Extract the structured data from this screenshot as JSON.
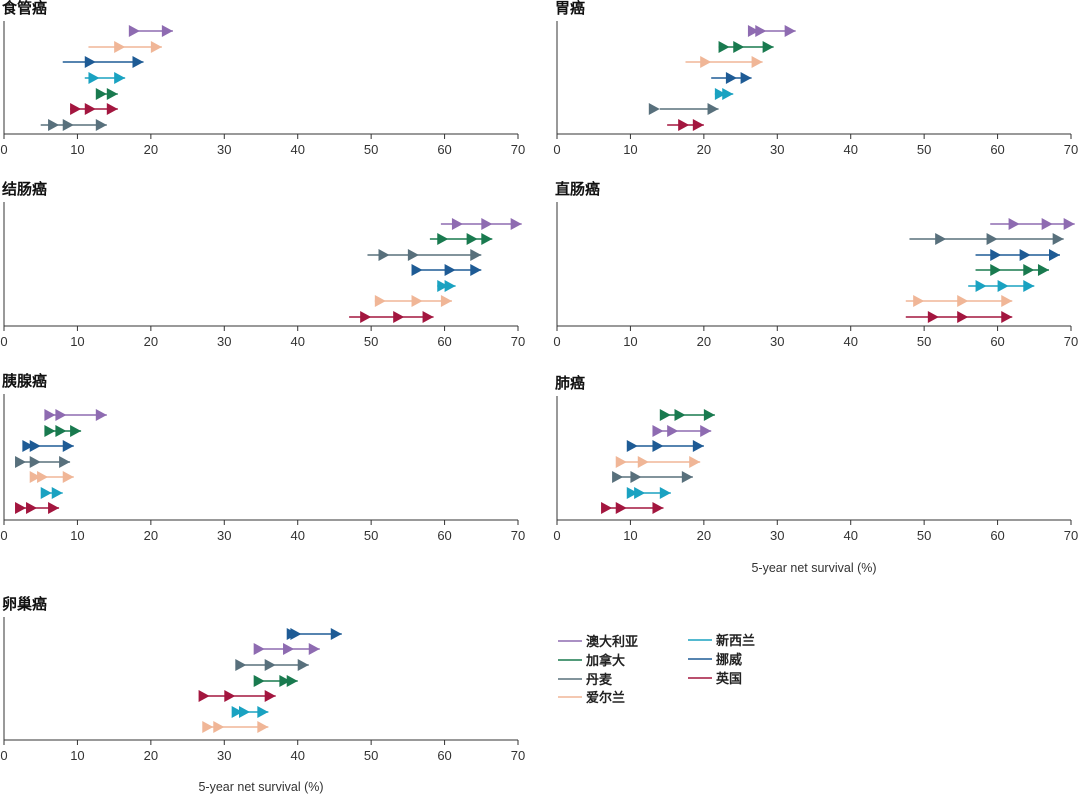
{
  "chart_data": {
    "type": "range-arrow",
    "xlim": [
      0,
      70
    ],
    "ticks": [
      0,
      10,
      20,
      30,
      40,
      50,
      60,
      70
    ],
    "xlabel": "5-year net survival (%)",
    "grid": false,
    "legend_position": "bottom-right",
    "countries": [
      {
        "key": "aus",
        "name": "澳大利亚",
        "color": "#8e6bb1"
      },
      {
        "key": "can",
        "name": "加拿大",
        "color": "#197a4f"
      },
      {
        "key": "den",
        "name": "丹麦",
        "color": "#58707c"
      },
      {
        "key": "ire",
        "name": "爱尔兰",
        "color": "#f0b697"
      },
      {
        "key": "nz",
        "name": "新西兰",
        "color": "#1aa2c1"
      },
      {
        "key": "nor",
        "name": "挪威",
        "color": "#1e5b95"
      },
      {
        "key": "uk",
        "name": "英国",
        "color": "#a3163f"
      }
    ],
    "panels": [
      {
        "title": "食管癌",
        "series": [
          {
            "country": "aus",
            "points": [
              17.5,
              18.5,
              23
            ]
          },
          {
            "country": "ire",
            "points": [
              11.5,
              16.5,
              21.5
            ]
          },
          {
            "country": "nor",
            "points": [
              8,
              12.5,
              19
            ]
          },
          {
            "country": "nz",
            "points": [
              11,
              13,
              16.5
            ]
          },
          {
            "country": "can",
            "points": [
              13.5,
              14,
              15.5
            ]
          },
          {
            "country": "uk",
            "points": [
              9,
              10.5,
              12.5,
              15.5
            ]
          },
          {
            "country": "den",
            "points": [
              5,
              7.5,
              9.5,
              14
            ]
          }
        ]
      },
      {
        "title": "胃癌",
        "series": [
          {
            "country": "aus",
            "points": [
              26.5,
              27.5,
              28.5,
              32.5
            ]
          },
          {
            "country": "can",
            "points": [
              22,
              23.5,
              25.5,
              29.5
            ]
          },
          {
            "country": "ire",
            "points": [
              17.5,
              21,
              28
            ]
          },
          {
            "country": "nor",
            "points": [
              21,
              24.5,
              26.5
            ]
          },
          {
            "country": "nz",
            "points": [
              21.5,
              23,
              24
            ]
          },
          {
            "country": "den",
            "points": [
              14,
              22
            ]
          },
          {
            "country": "uk",
            "points": [
              15,
              18,
              20
            ]
          }
        ]
      },
      {
        "title": "结肠癌",
        "series": [
          {
            "country": "aus",
            "points": [
              59.5,
              62.5,
              66.5,
              70.5
            ]
          },
          {
            "country": "can",
            "points": [
              58,
              60.5,
              64.5,
              66.5
            ]
          },
          {
            "country": "den",
            "points": [
              49.5,
              52.5,
              56.5,
              65
            ]
          },
          {
            "country": "nor",
            "points": [
              56,
              57,
              61.5,
              65
            ]
          },
          {
            "country": "nz",
            "points": [
              59,
              60.5,
              61.5
            ]
          },
          {
            "country": "ire",
            "points": [
              50.5,
              52,
              57,
              61
            ]
          },
          {
            "country": "uk",
            "points": [
              47,
              50,
              54.5,
              58.5
            ]
          }
        ]
      },
      {
        "title": "直肠癌",
        "series": [
          {
            "country": "aus",
            "points": [
              59,
              63,
              67.5,
              70.5
            ]
          },
          {
            "country": "den",
            "points": [
              48,
              53,
              60,
              69
            ]
          },
          {
            "country": "nor",
            "points": [
              57,
              60.5,
              64.5,
              68.5
            ]
          },
          {
            "country": "can",
            "points": [
              57,
              60.5,
              65,
              67
            ]
          },
          {
            "country": "nz",
            "points": [
              56,
              58.5,
              61.5,
              65
            ]
          },
          {
            "country": "ire",
            "points": [
              47.5,
              50,
              56,
              62
            ]
          },
          {
            "country": "uk",
            "points": [
              47.5,
              52,
              56,
              62
            ]
          }
        ]
      },
      {
        "title": "胰腺癌",
        "series": [
          {
            "country": "aus",
            "points": [
              6.5,
              7,
              8.5,
              14
            ]
          },
          {
            "country": "can",
            "points": [
              6.5,
              7,
              8.5,
              10.5
            ]
          },
          {
            "country": "nor",
            "points": [
              3.5,
              4,
              5,
              9.5
            ]
          },
          {
            "country": "den",
            "points": [
              2.5,
              3,
              5,
              9
            ]
          },
          {
            "country": "ire",
            "points": [
              4.5,
              5,
              6,
              9.5
            ]
          },
          {
            "country": "nz",
            "points": [
              6,
              6.5,
              8
            ]
          },
          {
            "country": "uk",
            "points": [
              2.5,
              3,
              4.5,
              7.5
            ]
          }
        ]
      },
      {
        "title": "肺癌",
        "series": [
          {
            "country": "can",
            "points": [
              15,
              15.5,
              17.5,
              21.5
            ]
          },
          {
            "country": "aus",
            "points": [
              14,
              14.5,
              16.5,
              21
            ]
          },
          {
            "country": "nor",
            "points": [
              10.5,
              11,
              14.5,
              20
            ]
          },
          {
            "country": "ire",
            "points": [
              9,
              9.5,
              12.5,
              19.5
            ]
          },
          {
            "country": "den",
            "points": [
              8.5,
              9,
              11.5,
              18.5
            ]
          },
          {
            "country": "nz",
            "points": [
              10.5,
              11,
              12,
              15.5
            ]
          },
          {
            "country": "uk",
            "points": [
              7,
              7.5,
              9.5,
              14.5
            ]
          }
        ]
      },
      {
        "title": "卵巢癌",
        "series": [
          {
            "country": "nor",
            "points": [
              39.5,
              40,
              40.5,
              46
            ]
          },
          {
            "country": "aus",
            "points": [
              35,
              35.5,
              39.5,
              43
            ]
          },
          {
            "country": "den",
            "points": [
              32.5,
              33,
              37,
              41.5
            ]
          },
          {
            "country": "can",
            "points": [
              35,
              35.5,
              39,
              40
            ]
          },
          {
            "country": "uk",
            "points": [
              27.5,
              28,
              31.5,
              37
            ]
          },
          {
            "country": "nz",
            "points": [
              32,
              32.5,
              33.5,
              36
            ]
          },
          {
            "country": "ire",
            "points": [
              28,
              28.5,
              30,
              36
            ]
          }
        ]
      }
    ]
  }
}
